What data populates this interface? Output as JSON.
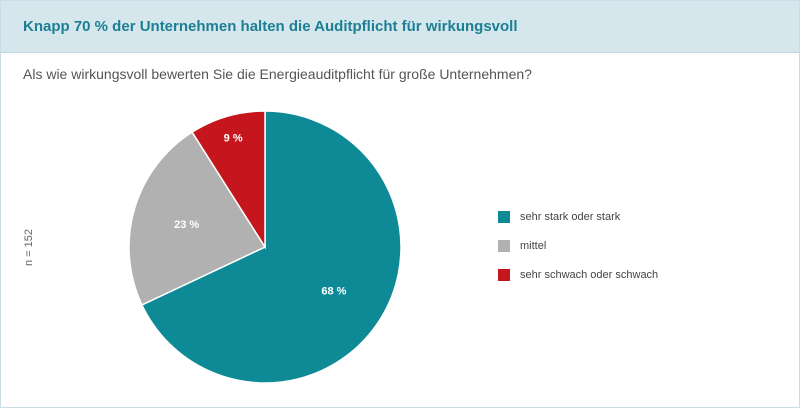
{
  "header": {
    "title": "Knapp 70 % der Unternehmen halten die Auditpflicht für wirkungsvoll"
  },
  "question": "Als wie wirkungsvoll bewerten Sie die Energieauditpflicht für große Unternehmen?",
  "sample_note": "n = 152",
  "chart_data": {
    "type": "pie",
    "title": "",
    "legend_position": "right",
    "slices": [
      {
        "label": "sehr stark oder stark",
        "value": 68,
        "display": "68 %",
        "color": "#0e8a96"
      },
      {
        "label": "mittel",
        "value": 23,
        "display": "23 %",
        "color": "#b1b1b1"
      },
      {
        "label": "sehr schwach oder schwach",
        "value": 9,
        "display": "9 %",
        "color": "#c4161c"
      }
    ]
  }
}
